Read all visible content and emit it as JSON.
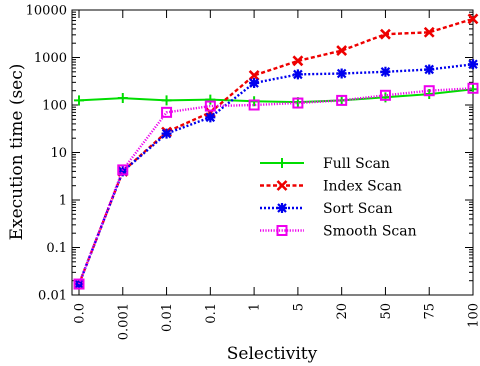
{
  "chart_data": {
    "type": "line",
    "xlabel": "Selectivity",
    "ylabel": "Execution time (sec)",
    "categories": [
      "0.0",
      "0.001",
      "0.01",
      "0.1",
      "1",
      "5",
      "20",
      "50",
      "75",
      "100"
    ],
    "y_scale": "log",
    "ylim": [
      0.01,
      10000
    ],
    "y_ticks": [
      0.01,
      0.1,
      1,
      10,
      100,
      1000,
      10000
    ],
    "y_tick_labels": [
      "0.01",
      "0.1",
      "1",
      "10",
      "100",
      "1000",
      "10000"
    ],
    "legend_position": "center-right",
    "grid": false,
    "series": [
      {
        "name": "Full Scan",
        "color": "#00dd00",
        "line_style": "solid",
        "marker": "plus",
        "values": [
          125,
          140,
          125,
          130,
          120,
          115,
          125,
          145,
          170,
          215
        ]
      },
      {
        "name": "Index Scan",
        "color": "#ee0000",
        "line_style": "dashed",
        "marker": "x",
        "values": [
          0.017,
          4,
          27,
          70,
          420,
          850,
          1400,
          3100,
          3400,
          6500
        ]
      },
      {
        "name": "Sort Scan",
        "color": "#0000ee",
        "line_style": "dotted",
        "marker": "star",
        "values": [
          0.017,
          4,
          25,
          55,
          290,
          440,
          460,
          500,
          560,
          720
        ]
      },
      {
        "name": "Smooth Scan",
        "color": "#ee00ee",
        "line_style": "dotted-fine",
        "marker": "square",
        "values": [
          0.017,
          4.3,
          70,
          95,
          100,
          110,
          125,
          160,
          200,
          225
        ]
      }
    ]
  }
}
